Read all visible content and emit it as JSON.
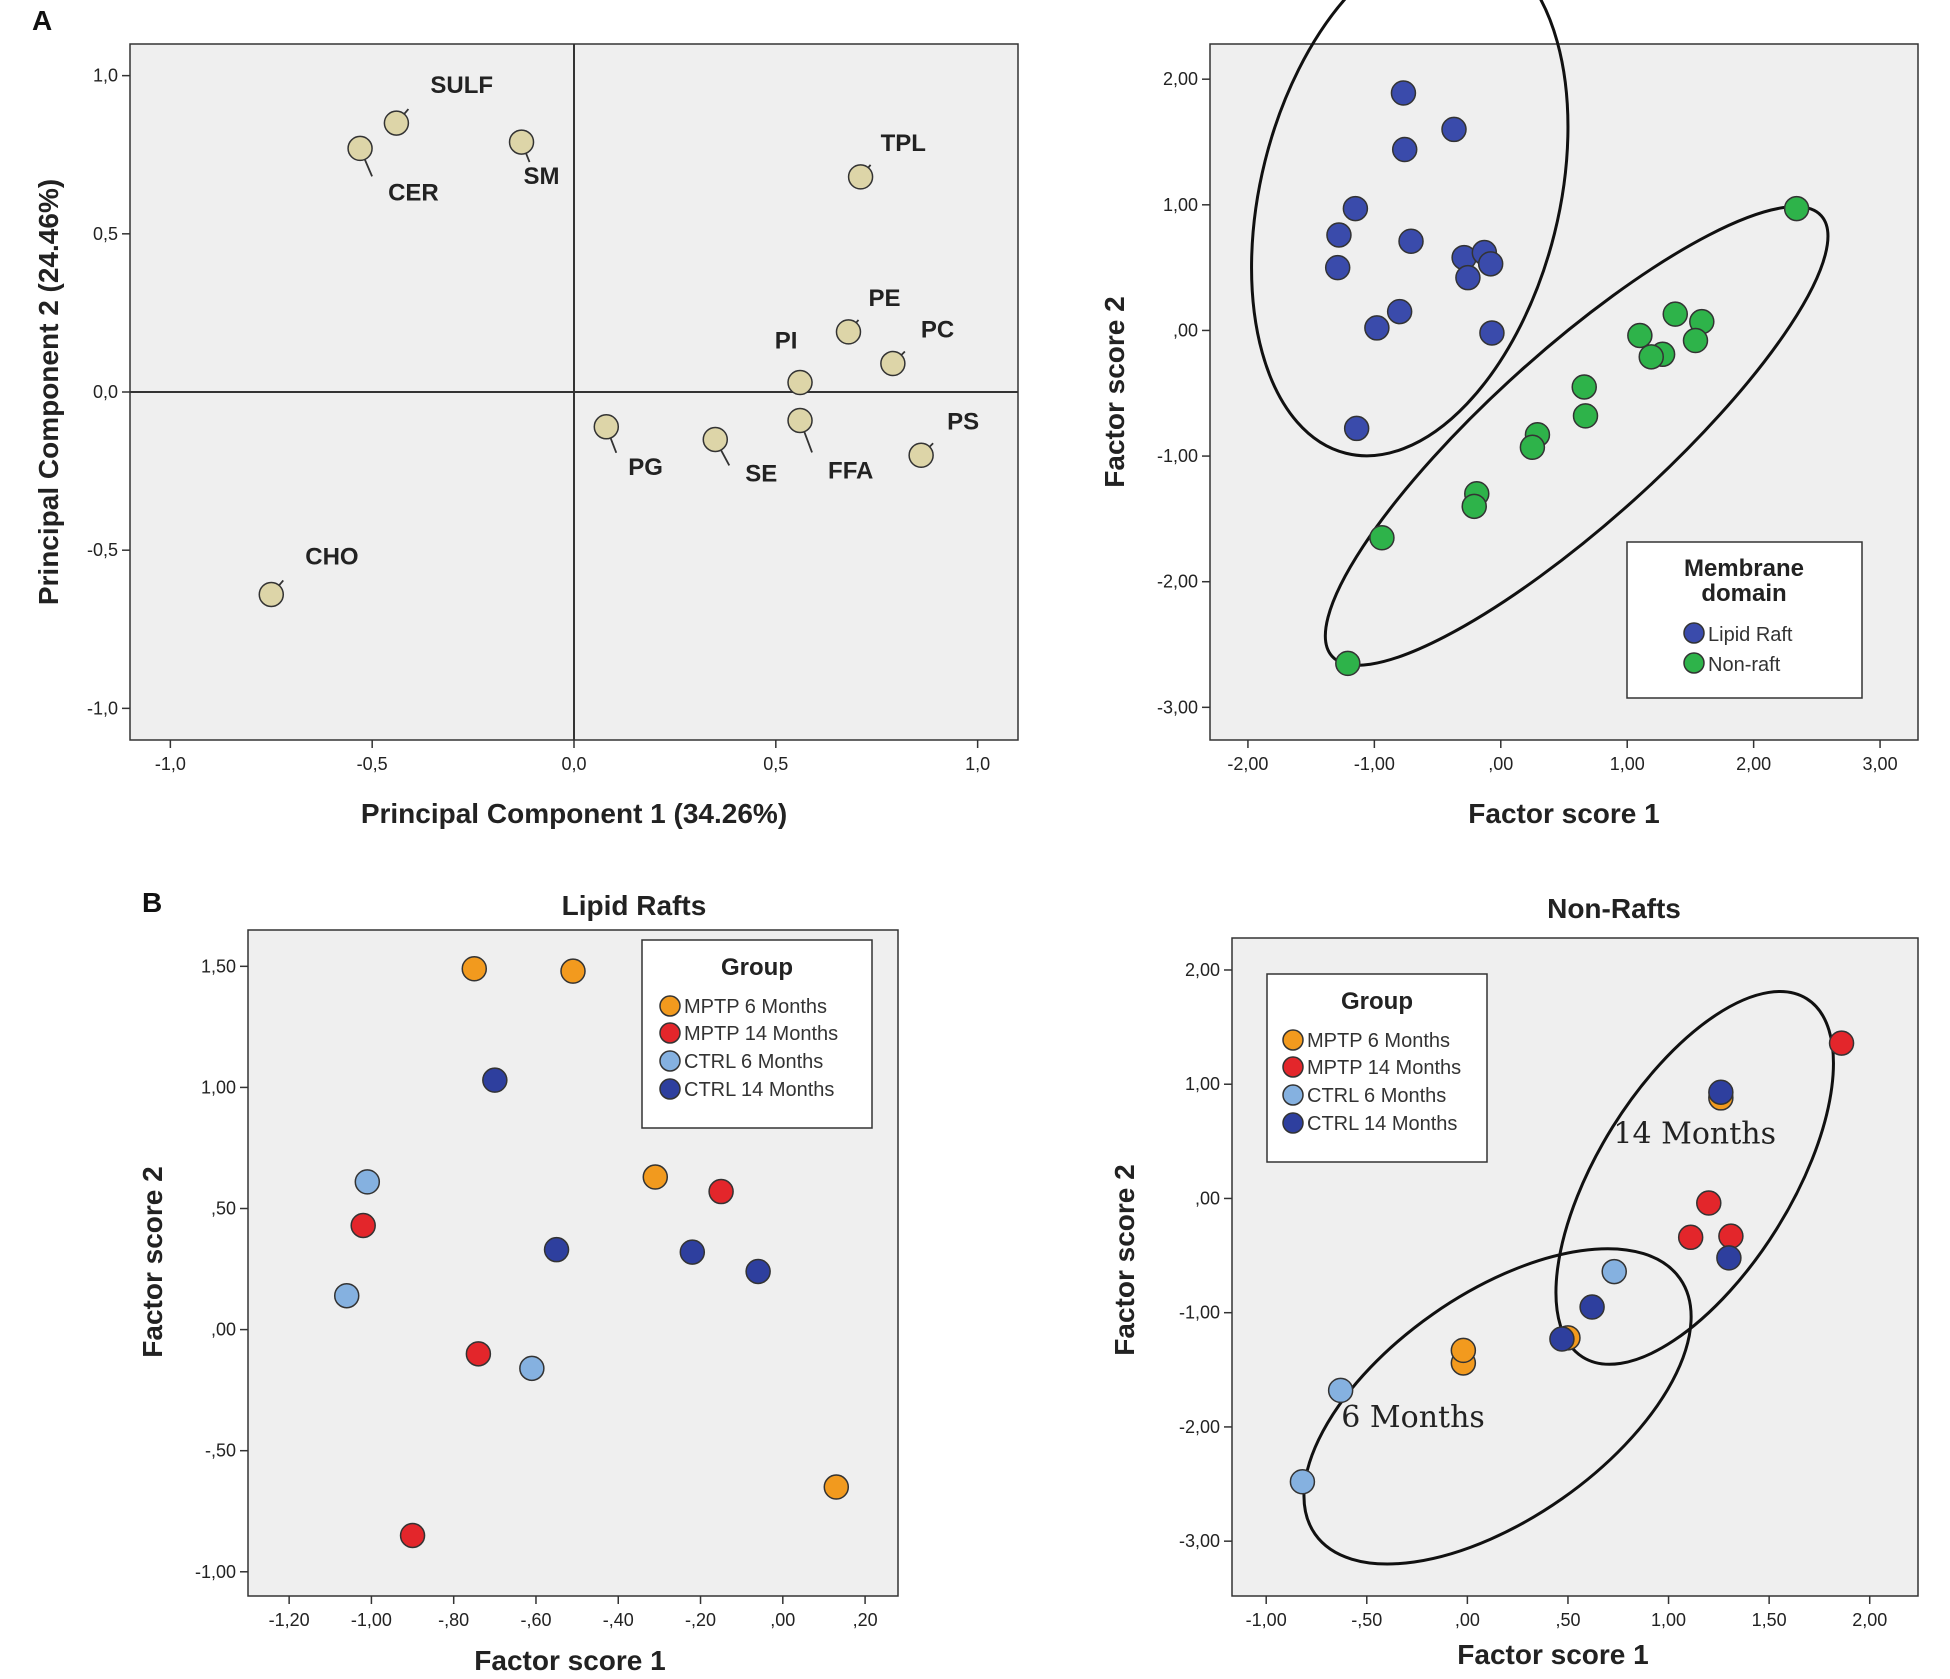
{
  "panel_labels": {
    "a": "A",
    "b": "B"
  },
  "chart_data": [
    {
      "id": "pca",
      "type": "scatter",
      "title": "",
      "xlabel": "Principal Component 1 (34.26%)",
      "ylabel": "Principal Component 2 (24.46%)",
      "xlim": [
        -1.1,
        1.1
      ],
      "ylim": [
        -1.1,
        1.1
      ],
      "xticks": [
        -1.0,
        -0.5,
        0.0,
        0.5,
        1.0
      ],
      "xtick_labels": [
        "-1,0",
        "-0,5",
        "0,0",
        "0,5",
        "1,0"
      ],
      "yticks": [
        -1.0,
        -0.5,
        0.0,
        0.5,
        1.0
      ],
      "ytick_labels": [
        "-1,0",
        "-0,5",
        "0,0",
        "0,5",
        "1,0"
      ],
      "reference_lines": {
        "x": 0,
        "y": 0
      },
      "point_color": "#ddd5a8",
      "points": [
        {
          "label": "SULF",
          "x": -0.44,
          "y": 0.85
        },
        {
          "label": "CER",
          "x": -0.53,
          "y": 0.77
        },
        {
          "label": "SM",
          "x": -0.13,
          "y": 0.79
        },
        {
          "label": "TPL",
          "x": 0.71,
          "y": 0.68
        },
        {
          "label": "PE",
          "x": 0.68,
          "y": 0.19
        },
        {
          "label": "PC",
          "x": 0.79,
          "y": 0.09
        },
        {
          "label": "PI",
          "x": 0.56,
          "y": 0.03
        },
        {
          "label": "PG",
          "x": 0.08,
          "y": -0.11
        },
        {
          "label": "SE",
          "x": 0.35,
          "y": -0.15
        },
        {
          "label": "FFA",
          "x": 0.56,
          "y": -0.09
        },
        {
          "label": "PS",
          "x": 0.86,
          "y": -0.2
        },
        {
          "label": "CHO",
          "x": -0.75,
          "y": -0.64
        }
      ]
    },
    {
      "id": "membrane",
      "type": "scatter",
      "title": "",
      "xlabel": "Factor score 1",
      "ylabel": "Factor score 2",
      "xlim": [
        -2.3,
        3.3
      ],
      "ylim": [
        -3.26,
        2.28
      ],
      "xticks": [
        -2,
        -1,
        0,
        1,
        2,
        3
      ],
      "xtick_labels": [
        "-2,00",
        "-1,00",
        ",00",
        "1,00",
        "2,00",
        "3,00"
      ],
      "yticks": [
        -3,
        -2,
        -1,
        0,
        1,
        2
      ],
      "ytick_labels": [
        "-3,00",
        "-2,00",
        "-1,00",
        ",00",
        "1,00",
        "2,00"
      ],
      "legend": {
        "title_line1": "Membrane",
        "title_line2": "domain",
        "position": "bottom-right"
      },
      "series": [
        {
          "name": "Lipid Raft",
          "color": "#3a4bab",
          "x": [
            -0.77,
            -0.37,
            -0.76,
            -1.15,
            -1.28,
            -0.71,
            -0.29,
            -0.13,
            -0.26,
            -0.08,
            -1.29,
            -0.8,
            -0.98,
            -0.07,
            -1.14
          ],
          "y": [
            1.89,
            1.6,
            1.44,
            0.97,
            0.76,
            0.71,
            0.58,
            0.62,
            0.42,
            0.53,
            0.5,
            0.15,
            0.02,
            -0.02,
            -0.78
          ]
        },
        {
          "name": "Non-raft",
          "color": "#2eb34a",
          "x": [
            2.34,
            1.38,
            1.59,
            1.1,
            1.54,
            1.28,
            1.19,
            0.66,
            0.67,
            0.29,
            0.25,
            -0.19,
            -0.21,
            -0.94,
            -1.21
          ],
          "y": [
            0.97,
            0.13,
            0.07,
            -0.04,
            -0.08,
            -0.19,
            -0.21,
            -0.45,
            -0.68,
            -0.83,
            -0.93,
            -1.3,
            -1.4,
            -1.65,
            -2.65
          ]
        }
      ],
      "ellipses": [
        {
          "cx": -0.72,
          "cy": 1.06,
          "rx": 1.18,
          "ry": 2.1,
          "angle_deg": 14
        },
        {
          "cx": 0.6,
          "cy": -0.84,
          "rx": 0.68,
          "ry": 2.62,
          "angle_deg": 48
        }
      ]
    },
    {
      "id": "lipid_rafts",
      "type": "scatter",
      "title": "Lipid Rafts",
      "xlabel": "Factor score 1",
      "ylabel": "Factor score 2",
      "xlim": [
        -1.3,
        0.28
      ],
      "ylim": [
        -1.1,
        1.65
      ],
      "xticks": [
        -1.2,
        -1.0,
        -0.8,
        -0.6,
        -0.4,
        -0.2,
        0.0,
        0.2
      ],
      "xtick_labels": [
        "-1,20",
        "-1,00",
        "-,80",
        "-,60",
        "-,40",
        "-,20",
        ",00",
        ",20"
      ],
      "yticks": [
        -1.0,
        -0.5,
        0.0,
        0.5,
        1.0,
        1.5
      ],
      "ytick_labels": [
        "-1,00",
        "-,50",
        ",00",
        ",50",
        "1,00",
        "1,50"
      ],
      "legend": {
        "title": "Group",
        "position": "top-right"
      },
      "series": [
        {
          "name": "MPTP 6 Months",
          "color": "#f29a1e",
          "x": [
            -0.75,
            -0.51,
            -0.31,
            0.13
          ],
          "y": [
            1.49,
            1.48,
            0.63,
            -0.65
          ]
        },
        {
          "name": "MPTP 14 Months",
          "color": "#e3262b",
          "x": [
            -1.02,
            -0.15,
            -0.74,
            -0.9
          ],
          "y": [
            0.43,
            0.57,
            -0.1,
            -0.85
          ]
        },
        {
          "name": "CTRL 6 Months",
          "color": "#85b1e0",
          "x": [
            -1.01,
            -1.06,
            -0.61
          ],
          "y": [
            0.61,
            0.14,
            -0.16
          ]
        },
        {
          "name": "CTRL 14 Months",
          "color": "#2e3f9e",
          "x": [
            -0.7,
            -0.55,
            -0.22,
            -0.06
          ],
          "y": [
            1.03,
            0.33,
            0.32,
            0.24
          ]
        }
      ]
    },
    {
      "id": "non_rafts",
      "type": "scatter",
      "title": "Non-Rafts",
      "xlabel": "Factor score 1",
      "ylabel": "Factor score 2",
      "xlim": [
        -1.17,
        2.24
      ],
      "ylim": [
        -3.48,
        2.28
      ],
      "xticks": [
        -1.0,
        -0.5,
        0.0,
        0.5,
        1.0,
        1.5,
        2.0
      ],
      "xtick_labels": [
        "-1,00",
        "-,50",
        ",00",
        ",50",
        "1,00",
        "1,50",
        "2,00"
      ],
      "yticks": [
        -3,
        -2,
        -1,
        0,
        1,
        2
      ],
      "ytick_labels": [
        "-3,00",
        "-2,00",
        "-1,00",
        ",00",
        "1,00",
        "2,00"
      ],
      "legend": {
        "title": "Group",
        "position": "top-left"
      },
      "annotations": [
        {
          "text": "14 Months",
          "x": 1.13,
          "y": 0.48
        },
        {
          "text": "6 Months",
          "x": -0.27,
          "y": -2.0
        }
      ],
      "series": [
        {
          "name": "MPTP 6 Months",
          "color": "#f29a1e",
          "x": [
            1.26,
            -0.02,
            -0.02,
            0.5
          ],
          "y": [
            0.88,
            -1.44,
            -1.33,
            -1.22
          ]
        },
        {
          "name": "MPTP 14 Months",
          "color": "#e3262b",
          "x": [
            1.86,
            1.2,
            1.11,
            1.31
          ],
          "y": [
            1.36,
            -0.04,
            -0.34,
            -0.33
          ]
        },
        {
          "name": "CTRL 6 Months",
          "color": "#85b1e0",
          "x": [
            -0.63,
            -0.82,
            0.73
          ],
          "y": [
            -1.68,
            -2.48,
            -0.64
          ]
        },
        {
          "name": "CTRL 14 Months",
          "color": "#2e3f9e",
          "x": [
            1.26,
            0.62,
            0.47,
            1.3
          ],
          "y": [
            0.93,
            -0.95,
            -1.23,
            -0.52
          ]
        }
      ],
      "ellipses": [
        {
          "cx": 1.13,
          "cy": 0.18,
          "rx": 0.48,
          "ry": 1.85,
          "angle_deg": 32
        },
        {
          "cx": 0.15,
          "cy": -1.82,
          "rx": 0.56,
          "ry": 1.95,
          "angle_deg": 55
        }
      ]
    }
  ]
}
